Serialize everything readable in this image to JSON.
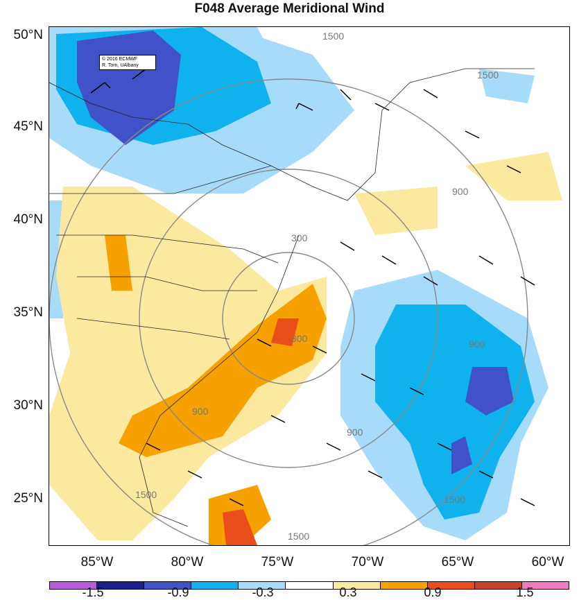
{
  "title": "F048 Average Meridional Wind",
  "credit": {
    "line1": "© 2016 ECMWF",
    "line2": "R. Torn, UAlbany"
  },
  "lat_labels": [
    "50°N",
    "45°N",
    "40°N",
    "35°N",
    "30°N",
    "25°N"
  ],
  "lon_labels": [
    "85°W",
    "80°W",
    "75°W",
    "70°W",
    "65°W",
    "60°W"
  ],
  "contour_labels": [
    "1500",
    "1500",
    "900",
    "300",
    "300",
    "900",
    "900",
    "900",
    "1500",
    "1500",
    "1500"
  ],
  "colorbar": {
    "colors": [
      "#b85bd6",
      "#17208a",
      "#4152c8",
      "#10b2ee",
      "#a6dcfa",
      "#ffffff",
      "#fbe9a0",
      "#f6a100",
      "#e94e1a",
      "#c8402a",
      "#f07ac0"
    ],
    "tick_labels": [
      "-1.5",
      "-0.9",
      "-0.3",
      "0.3",
      "0.9",
      "1.5"
    ]
  }
}
